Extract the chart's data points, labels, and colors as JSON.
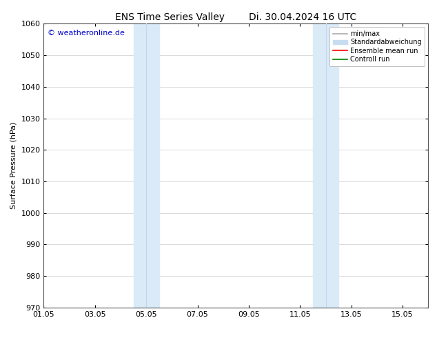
{
  "title_left": "ENS Time Series Valley",
  "title_right": "Di. 30.04.2024 16 UTC",
  "ylabel": "Surface Pressure (hPa)",
  "ylim": [
    970,
    1060
  ],
  "yticks": [
    970,
    980,
    990,
    1000,
    1010,
    1020,
    1030,
    1040,
    1050,
    1060
  ],
  "xlim": [
    0,
    15
  ],
  "xtick_labels": [
    "01.05",
    "03.05",
    "05.05",
    "07.05",
    "09.05",
    "11.05",
    "13.05",
    "15.05"
  ],
  "xtick_positions": [
    0,
    2,
    4,
    6,
    8,
    10,
    12,
    14
  ],
  "shaded_bands": [
    {
      "x_start": 3.5,
      "x_end": 4.5,
      "divider": 4.0
    },
    {
      "x_start": 10.5,
      "x_end": 11.5,
      "divider": 11.0
    }
  ],
  "band_color": "#daeaf7",
  "band_divider_color": "#c0d8ee",
  "watermark": "© weatheronline.de",
  "watermark_color": "#0000cc",
  "legend_entries": [
    {
      "label": "min/max",
      "color": "#aaaaaa",
      "lw": 1.2,
      "type": "line"
    },
    {
      "label": "Standardabweichung",
      "color": "#c8ddf0",
      "lw": 8,
      "type": "patch"
    },
    {
      "label": "Ensemble mean run",
      "color": "red",
      "lw": 1.2,
      "type": "line"
    },
    {
      "label": "Controll run",
      "color": "green",
      "lw": 1.2,
      "type": "line"
    }
  ],
  "bg_color": "#ffffff",
  "grid_color": "#cccccc",
  "title_fontsize": 10,
  "tick_fontsize": 8,
  "ylabel_fontsize": 8,
  "watermark_fontsize": 8,
  "legend_fontsize": 7
}
